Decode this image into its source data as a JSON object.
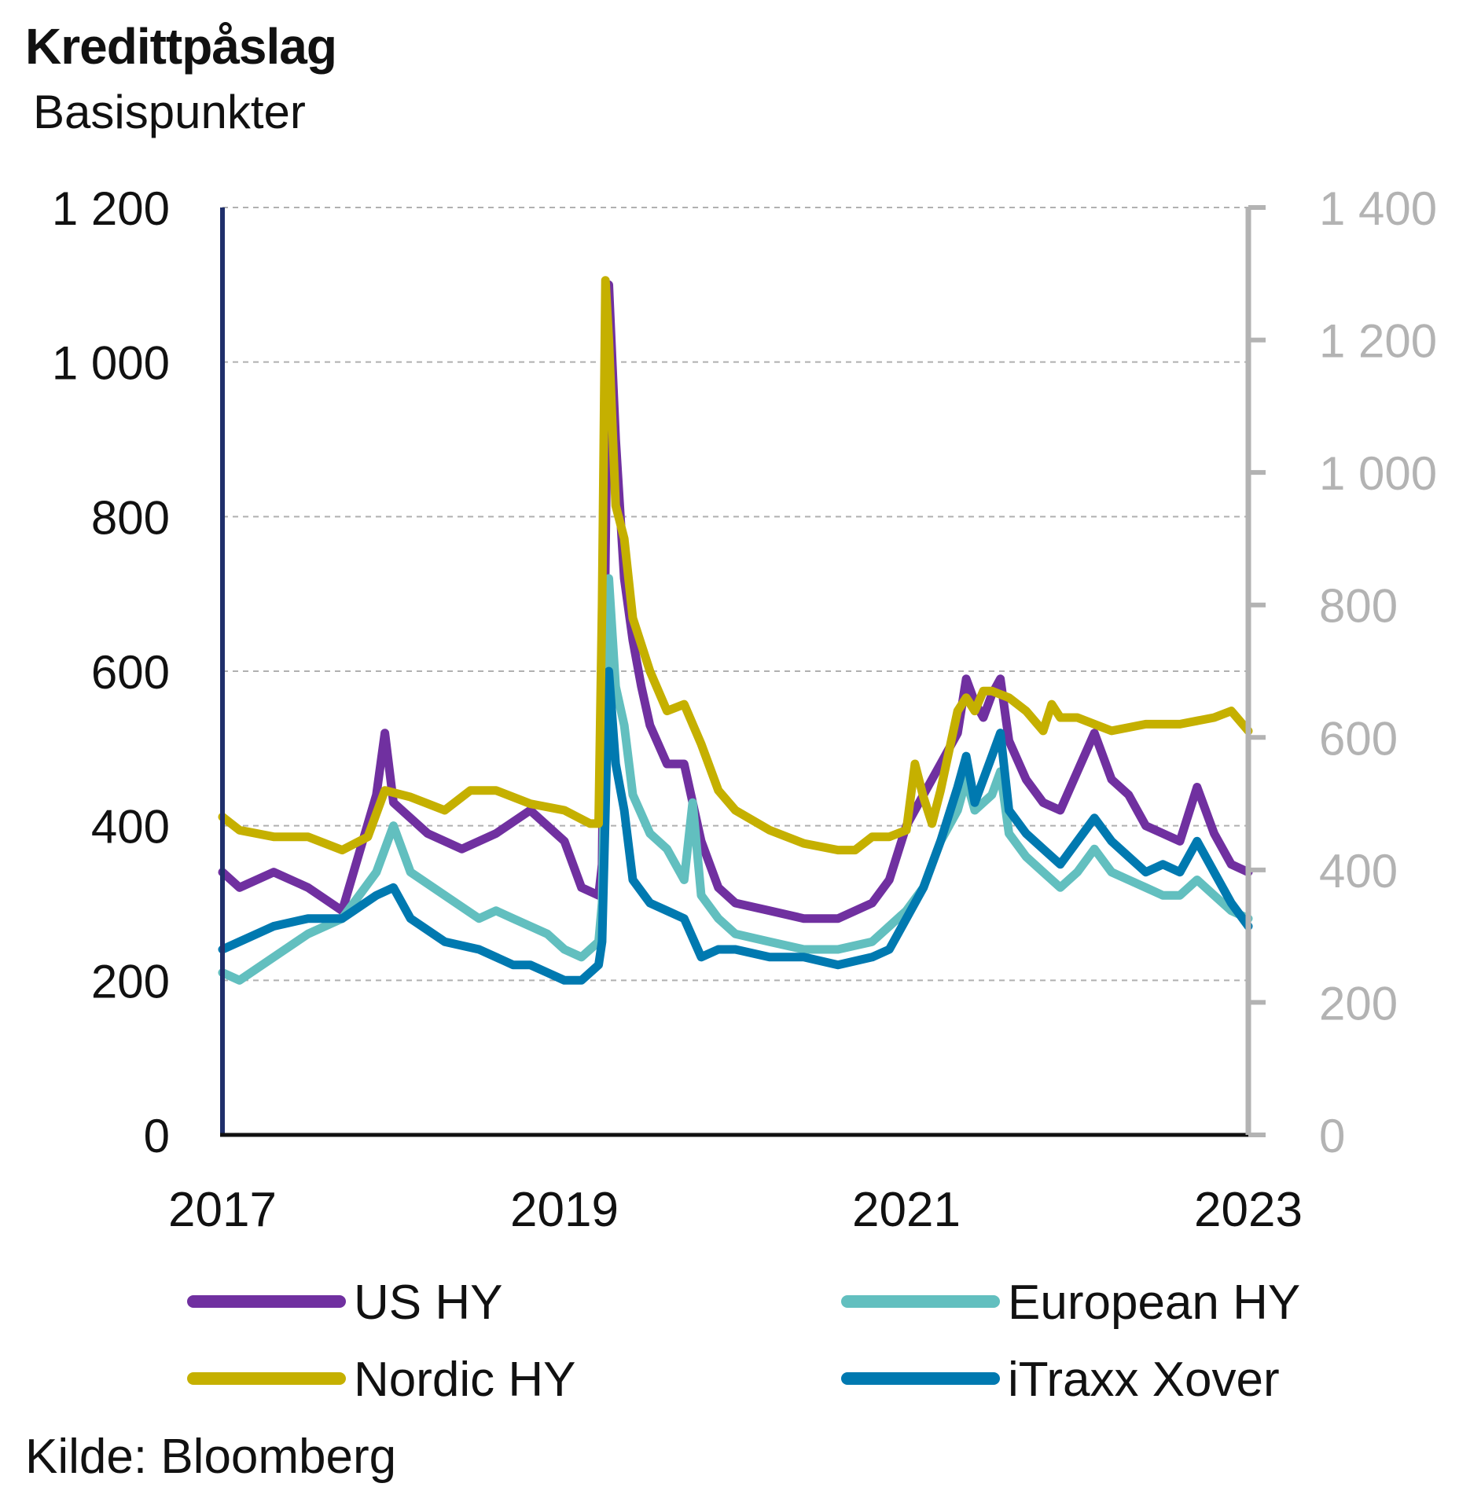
{
  "chart_data": {
    "type": "line",
    "title": "Kredittpåslag",
    "subtitle": "Basispunkter",
    "source": "Kilde: Bloomberg",
    "x_range": [
      2017.0,
      2023.0
    ],
    "x_ticks": [
      2017,
      2019,
      2021,
      2023
    ],
    "x_tick_labels": [
      "2017",
      "2019",
      "2021",
      "2023"
    ],
    "y_left": {
      "range": [
        0,
        1200
      ],
      "ticks": [
        0,
        200,
        400,
        600,
        800,
        1000,
        1200
      ],
      "tick_labels": [
        "0",
        "200",
        "400",
        "600",
        "800",
        "1 000",
        "1 200"
      ]
    },
    "y_right": {
      "range": [
        0,
        1400
      ],
      "ticks": [
        0,
        200,
        400,
        600,
        800,
        1000,
        1200,
        1400
      ],
      "tick_labels": [
        "0",
        "200",
        "400",
        "600",
        "800",
        "1 000",
        "1 200",
        "1 400"
      ]
    },
    "grid": "horizontal dashed",
    "legend_position": "bottom",
    "series": [
      {
        "name": "US HY",
        "color": "#7030a0",
        "axis": "left",
        "points": [
          [
            2017.0,
            340
          ],
          [
            2017.1,
            320
          ],
          [
            2017.3,
            340
          ],
          [
            2017.5,
            320
          ],
          [
            2017.7,
            290
          ],
          [
            2017.9,
            440
          ],
          [
            2017.95,
            520
          ],
          [
            2018.0,
            430
          ],
          [
            2018.2,
            390
          ],
          [
            2018.4,
            370
          ],
          [
            2018.6,
            390
          ],
          [
            2018.8,
            420
          ],
          [
            2019.0,
            380
          ],
          [
            2019.1,
            320
          ],
          [
            2019.2,
            310
          ],
          [
            2019.22,
            350
          ],
          [
            2019.24,
            750
          ],
          [
            2019.26,
            1100
          ],
          [
            2019.3,
            900
          ],
          [
            2019.35,
            720
          ],
          [
            2019.4,
            640
          ],
          [
            2019.45,
            580
          ],
          [
            2019.5,
            530
          ],
          [
            2019.6,
            480
          ],
          [
            2019.7,
            480
          ],
          [
            2019.8,
            380
          ],
          [
            2019.9,
            320
          ],
          [
            2020.0,
            300
          ],
          [
            2020.2,
            290
          ],
          [
            2020.4,
            280
          ],
          [
            2020.6,
            280
          ],
          [
            2020.8,
            300
          ],
          [
            2020.9,
            330
          ],
          [
            2021.0,
            400
          ],
          [
            2021.1,
            440
          ],
          [
            2021.2,
            480
          ],
          [
            2021.3,
            520
          ],
          [
            2021.35,
            590
          ],
          [
            2021.4,
            560
          ],
          [
            2021.45,
            540
          ],
          [
            2021.5,
            570
          ],
          [
            2021.55,
            590
          ],
          [
            2021.6,
            510
          ],
          [
            2021.7,
            460
          ],
          [
            2021.8,
            430
          ],
          [
            2021.9,
            420
          ],
          [
            2022.0,
            470
          ],
          [
            2022.1,
            520
          ],
          [
            2022.2,
            460
          ],
          [
            2022.3,
            440
          ],
          [
            2022.4,
            400
          ],
          [
            2022.5,
            390
          ],
          [
            2022.6,
            380
          ],
          [
            2022.7,
            450
          ],
          [
            2022.8,
            390
          ],
          [
            2022.9,
            350
          ],
          [
            2023.0,
            340
          ]
        ]
      },
      {
        "name": "European HY",
        "color": "#62bfbf",
        "axis": "left",
        "points": [
          [
            2017.0,
            210
          ],
          [
            2017.1,
            200
          ],
          [
            2017.3,
            230
          ],
          [
            2017.5,
            260
          ],
          [
            2017.7,
            280
          ],
          [
            2017.9,
            340
          ],
          [
            2018.0,
            400
          ],
          [
            2018.1,
            340
          ],
          [
            2018.3,
            310
          ],
          [
            2018.5,
            280
          ],
          [
            2018.6,
            290
          ],
          [
            2018.7,
            280
          ],
          [
            2018.8,
            270
          ],
          [
            2018.9,
            260
          ],
          [
            2019.0,
            240
          ],
          [
            2019.1,
            230
          ],
          [
            2019.2,
            250
          ],
          [
            2019.22,
            300
          ],
          [
            2019.24,
            520
          ],
          [
            2019.26,
            720
          ],
          [
            2019.3,
            580
          ],
          [
            2019.35,
            530
          ],
          [
            2019.4,
            440
          ],
          [
            2019.5,
            390
          ],
          [
            2019.6,
            370
          ],
          [
            2019.7,
            330
          ],
          [
            2019.75,
            430
          ],
          [
            2019.8,
            310
          ],
          [
            2019.9,
            280
          ],
          [
            2020.0,
            260
          ],
          [
            2020.2,
            250
          ],
          [
            2020.4,
            240
          ],
          [
            2020.6,
            240
          ],
          [
            2020.8,
            250
          ],
          [
            2020.9,
            270
          ],
          [
            2021.0,
            290
          ],
          [
            2021.1,
            320
          ],
          [
            2021.2,
            380
          ],
          [
            2021.3,
            420
          ],
          [
            2021.35,
            460
          ],
          [
            2021.4,
            420
          ],
          [
            2021.5,
            440
          ],
          [
            2021.55,
            470
          ],
          [
            2021.6,
            390
          ],
          [
            2021.7,
            360
          ],
          [
            2021.8,
            340
          ],
          [
            2021.9,
            320
          ],
          [
            2022.0,
            340
          ],
          [
            2022.1,
            370
          ],
          [
            2022.2,
            340
          ],
          [
            2022.3,
            330
          ],
          [
            2022.4,
            320
          ],
          [
            2022.5,
            310
          ],
          [
            2022.6,
            310
          ],
          [
            2022.7,
            330
          ],
          [
            2022.8,
            310
          ],
          [
            2022.9,
            290
          ],
          [
            2023.0,
            280
          ]
        ]
      },
      {
        "name": "iTraxx Xover",
        "color": "#0079b0",
        "axis": "left",
        "points": [
          [
            2017.0,
            240
          ],
          [
            2017.1,
            250
          ],
          [
            2017.3,
            270
          ],
          [
            2017.5,
            280
          ],
          [
            2017.7,
            280
          ],
          [
            2017.9,
            310
          ],
          [
            2018.0,
            320
          ],
          [
            2018.1,
            280
          ],
          [
            2018.3,
            250
          ],
          [
            2018.5,
            240
          ],
          [
            2018.7,
            220
          ],
          [
            2018.8,
            220
          ],
          [
            2018.9,
            210
          ],
          [
            2019.0,
            200
          ],
          [
            2019.1,
            200
          ],
          [
            2019.2,
            220
          ],
          [
            2019.22,
            250
          ],
          [
            2019.24,
            420
          ],
          [
            2019.26,
            600
          ],
          [
            2019.3,
            480
          ],
          [
            2019.35,
            420
          ],
          [
            2019.4,
            330
          ],
          [
            2019.5,
            300
          ],
          [
            2019.6,
            290
          ],
          [
            2019.7,
            280
          ],
          [
            2019.8,
            230
          ],
          [
            2019.9,
            240
          ],
          [
            2020.0,
            240
          ],
          [
            2020.2,
            230
          ],
          [
            2020.4,
            230
          ],
          [
            2020.6,
            220
          ],
          [
            2020.8,
            230
          ],
          [
            2020.9,
            240
          ],
          [
            2021.0,
            280
          ],
          [
            2021.1,
            320
          ],
          [
            2021.2,
            380
          ],
          [
            2021.3,
            450
          ],
          [
            2021.35,
            490
          ],
          [
            2021.4,
            430
          ],
          [
            2021.5,
            490
          ],
          [
            2021.55,
            520
          ],
          [
            2021.6,
            420
          ],
          [
            2021.7,
            390
          ],
          [
            2021.8,
            370
          ],
          [
            2021.9,
            350
          ],
          [
            2022.0,
            380
          ],
          [
            2022.1,
            410
          ],
          [
            2022.2,
            380
          ],
          [
            2022.3,
            360
          ],
          [
            2022.4,
            340
          ],
          [
            2022.5,
            350
          ],
          [
            2022.6,
            340
          ],
          [
            2022.7,
            380
          ],
          [
            2022.8,
            340
          ],
          [
            2022.9,
            300
          ],
          [
            2023.0,
            270
          ]
        ]
      },
      {
        "name": "Nordic HY",
        "color": "#c5b000",
        "axis": "right",
        "points": [
          [
            2017.0,
            480
          ],
          [
            2017.1,
            460
          ],
          [
            2017.3,
            450
          ],
          [
            2017.5,
            450
          ],
          [
            2017.7,
            430
          ],
          [
            2017.85,
            450
          ],
          [
            2017.95,
            520
          ],
          [
            2018.1,
            510
          ],
          [
            2018.3,
            490
          ],
          [
            2018.45,
            520
          ],
          [
            2018.6,
            520
          ],
          [
            2018.8,
            500
          ],
          [
            2019.0,
            490
          ],
          [
            2019.15,
            470
          ],
          [
            2019.2,
            470
          ],
          [
            2019.22,
            800
          ],
          [
            2019.24,
            1290
          ],
          [
            2019.26,
            1200
          ],
          [
            2019.3,
            950
          ],
          [
            2019.35,
            900
          ],
          [
            2019.4,
            780
          ],
          [
            2019.5,
            700
          ],
          [
            2019.6,
            640
          ],
          [
            2019.7,
            650
          ],
          [
            2019.8,
            590
          ],
          [
            2019.9,
            520
          ],
          [
            2020.0,
            490
          ],
          [
            2020.2,
            460
          ],
          [
            2020.4,
            440
          ],
          [
            2020.6,
            430
          ],
          [
            2020.7,
            430
          ],
          [
            2020.8,
            450
          ],
          [
            2020.9,
            450
          ],
          [
            2021.0,
            460
          ],
          [
            2021.05,
            560
          ],
          [
            2021.1,
            510
          ],
          [
            2021.15,
            470
          ],
          [
            2021.2,
            520
          ],
          [
            2021.3,
            640
          ],
          [
            2021.35,
            660
          ],
          [
            2021.4,
            640
          ],
          [
            2021.45,
            670
          ],
          [
            2021.5,
            670
          ],
          [
            2021.6,
            660
          ],
          [
            2021.7,
            640
          ],
          [
            2021.8,
            610
          ],
          [
            2021.85,
            650
          ],
          [
            2021.9,
            630
          ],
          [
            2022.0,
            630
          ],
          [
            2022.2,
            610
          ],
          [
            2022.4,
            620
          ],
          [
            2022.6,
            620
          ],
          [
            2022.8,
            630
          ],
          [
            2022.9,
            640
          ],
          [
            2023.0,
            610
          ]
        ]
      }
    ]
  }
}
